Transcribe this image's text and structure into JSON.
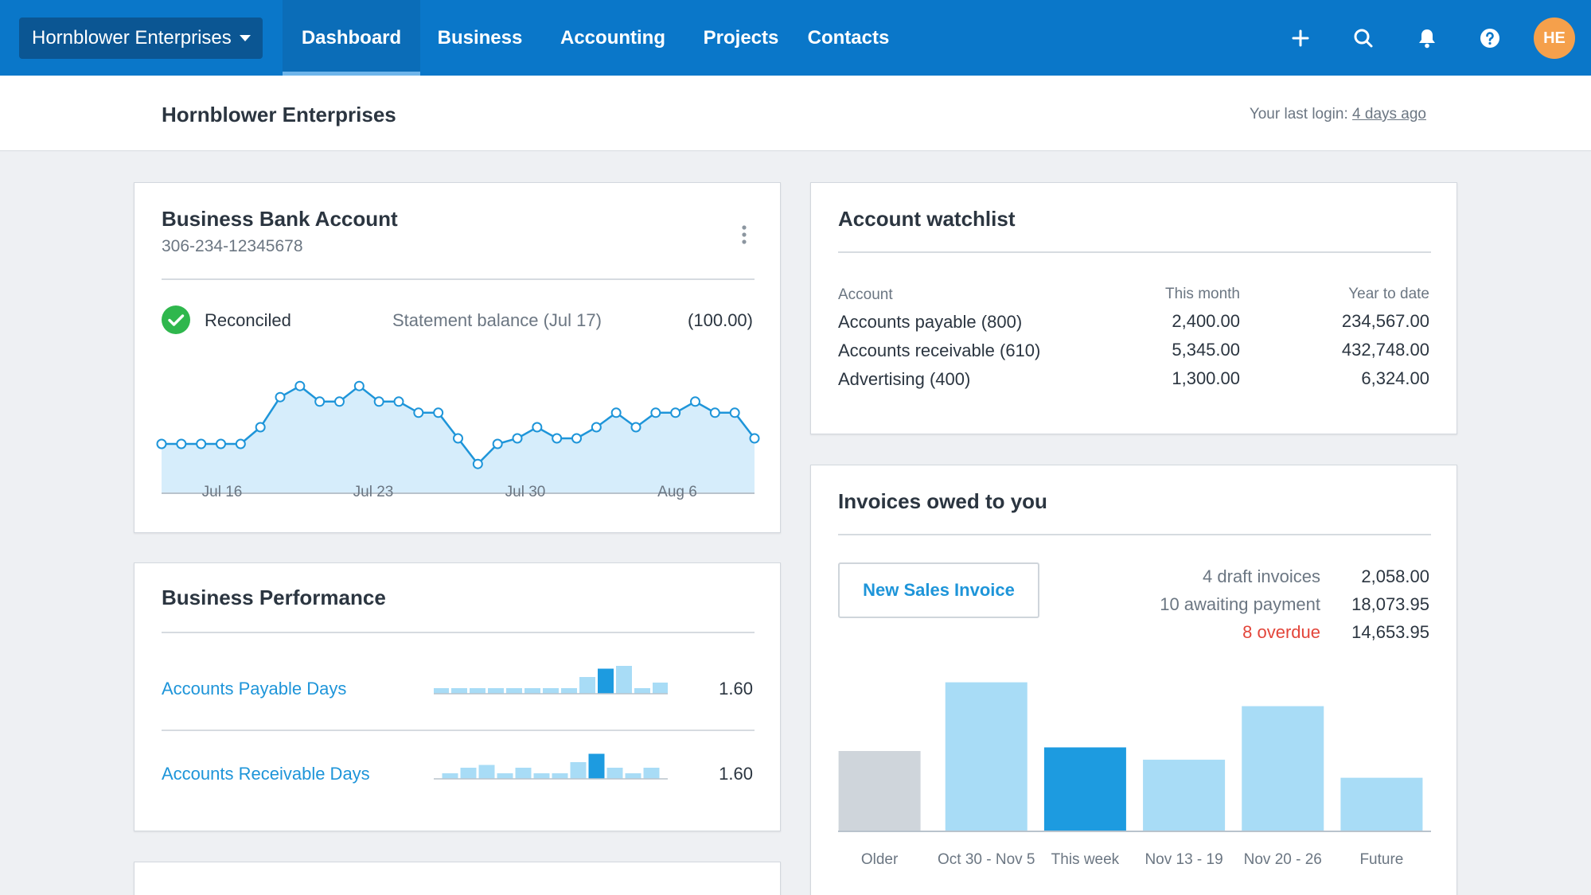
{
  "nav": {
    "org_name": "Hornblower Enterprises",
    "tabs": [
      "Dashboard",
      "Business",
      "Accounting",
      "Projects",
      "Contacts"
    ],
    "active_tab": "Dashboard",
    "avatar_initials": "HE"
  },
  "header": {
    "title": "Hornblower Enterprises",
    "last_login_label": "Your last login:",
    "last_login_value": "4 days ago"
  },
  "bank": {
    "title": "Business Bank Account",
    "account_number": "306-234-12345678",
    "status": "Reconciled",
    "statement_label": "Statement balance (Jul 17)",
    "statement_value": "(100.00)",
    "chart_data": {
      "type": "area",
      "x_ticks": [
        "Jul 16",
        "Jul 23",
        "Jul 30",
        "Aug 6"
      ],
      "values": [
        30,
        30,
        30,
        30,
        30,
        45,
        72,
        82,
        68,
        68,
        82,
        68,
        68,
        58,
        58,
        35,
        12,
        30,
        35,
        45,
        35,
        35,
        45,
        58,
        45,
        58,
        58,
        68,
        58,
        58,
        35
      ]
    }
  },
  "performance": {
    "title": "Business Performance",
    "rows": [
      {
        "label": "Accounts Payable Days",
        "value": "1.60",
        "bars": [
          1,
          1,
          1,
          1,
          1,
          1,
          1,
          1,
          3,
          4.5,
          5,
          1,
          2
        ],
        "highlight": 9
      },
      {
        "label": "Accounts Receivable Days",
        "value": "1.60",
        "bars": [
          1,
          2,
          2.5,
          1,
          2,
          1,
          1,
          3,
          4.5,
          2,
          1,
          2
        ],
        "highlight": 8
      }
    ]
  },
  "watchlist": {
    "title": "Account watchlist",
    "columns": [
      "Account",
      "This month",
      "Year to date"
    ],
    "rows": [
      [
        "Accounts payable (800)",
        "2,400.00",
        "234,567.00"
      ],
      [
        "Accounts receivable (610)",
        "5,345.00",
        "432,748.00"
      ],
      [
        "Advertising (400)",
        "1,300.00",
        "6,324.00"
      ]
    ]
  },
  "invoices": {
    "title": "Invoices owed to you",
    "new_button": "New Sales Invoice",
    "summary": [
      {
        "label": "4 draft invoices",
        "value": "2,058.00"
      },
      {
        "label": "10 awaiting payment",
        "value": "18,073.95"
      },
      {
        "label": "8 overdue",
        "value": "14,653.95"
      }
    ],
    "chart_data": {
      "type": "bar",
      "categories": [
        "Older",
        "Oct 30 - Nov 5",
        "This week",
        "Nov 13 - 19",
        "Nov 20 - 26",
        "Future"
      ],
      "values": [
        110,
        205,
        115,
        98,
        172,
        73
      ],
      "colors": [
        "#cfd5db",
        "#a8dcf6",
        "#1d9be0",
        "#a8dcf6",
        "#a8dcf6",
        "#a8dcf6"
      ]
    }
  },
  "colors": {
    "brand": "#0a77c9",
    "accent": "#1e95d9",
    "overdue": "#e3453a",
    "success": "#2fb74d"
  }
}
